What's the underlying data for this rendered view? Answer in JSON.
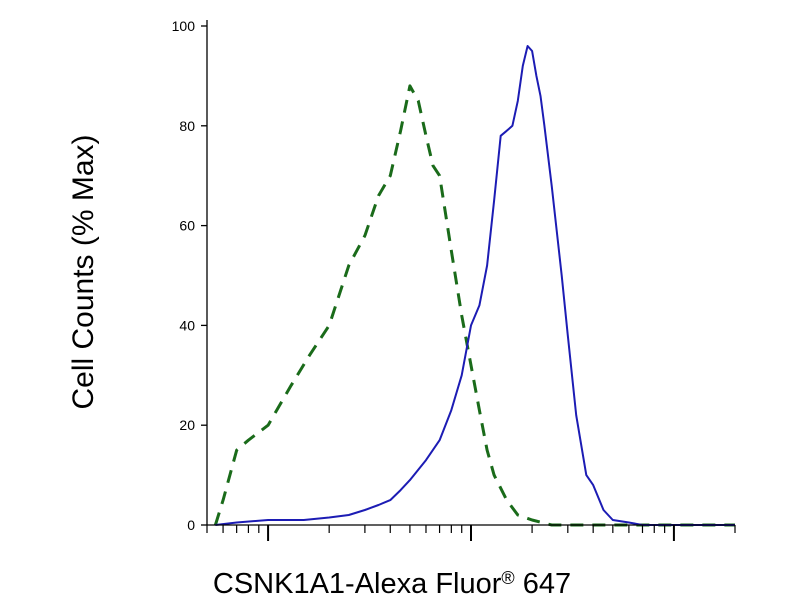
{
  "chart_data": {
    "type": "line",
    "title": "",
    "xlabel": "CSNK1A1-Alexa Fluor",
    "xlabel_mark": "®",
    "xlabel_suffix": " 647",
    "ylabel": "Cell Counts (% Max)",
    "x_scale": "log",
    "xlim": [
      0.5,
      200
    ],
    "ylim": [
      0,
      100
    ],
    "y_ticks": [
      0,
      20,
      40,
      60,
      80,
      100
    ],
    "y_tick_labels": [
      "0",
      "20",
      "40",
      "60",
      "80",
      "100"
    ],
    "x_tick_labels": [],
    "grid": false,
    "legend": "none",
    "series": [
      {
        "style": "dashed",
        "color": "#1a6b1a",
        "x": [
          0.55,
          0.6,
          0.7,
          0.8,
          1.0,
          1.3,
          1.6,
          2.0,
          2.5,
          3.0,
          3.5,
          4.0,
          4.5,
          5.0,
          5.5,
          6.0,
          6.5,
          7.0,
          8.0,
          9.0,
          10.0,
          11.0,
          12.0,
          13.0,
          15.0,
          17.0,
          20.0,
          25.0,
          30.0,
          40.0,
          50.0,
          70.0,
          100.0,
          150.0,
          200.0
        ],
        "values": [
          0,
          5,
          15,
          17,
          20,
          28,
          34,
          40,
          52,
          58,
          66,
          70,
          79,
          88,
          85,
          78,
          72,
          70,
          55,
          42,
          32,
          23,
          15,
          10,
          5,
          2,
          1,
          0,
          0,
          0,
          0,
          0,
          0,
          0,
          0
        ]
      },
      {
        "style": "solid",
        "color": "#1c1cb4",
        "x": [
          0.55,
          0.7,
          1.0,
          1.5,
          2.0,
          2.5,
          3.0,
          3.5,
          4.0,
          4.5,
          5.0,
          6.0,
          7.0,
          8.0,
          9.0,
          10.0,
          11.0,
          12.0,
          13.0,
          14.0,
          15.0,
          16.0,
          17.0,
          18.0,
          19.0,
          20.0,
          21.0,
          22.0,
          23.0,
          25.0,
          28.0,
          30.0,
          33.0,
          37.0,
          40.0,
          45.0,
          50.0,
          60.0,
          70.0,
          80.0,
          100.0,
          200.0
        ],
        "values": [
          0,
          0.5,
          1,
          1,
          1.5,
          2,
          3,
          4,
          5,
          7,
          9,
          13,
          17,
          23,
          30,
          40,
          44,
          52,
          65,
          78,
          79,
          80,
          85,
          92,
          96,
          95,
          90,
          86,
          80,
          68,
          50,
          38,
          22,
          10,
          8,
          3,
          1,
          0.5,
          0,
          0,
          0,
          0
        ]
      }
    ]
  }
}
